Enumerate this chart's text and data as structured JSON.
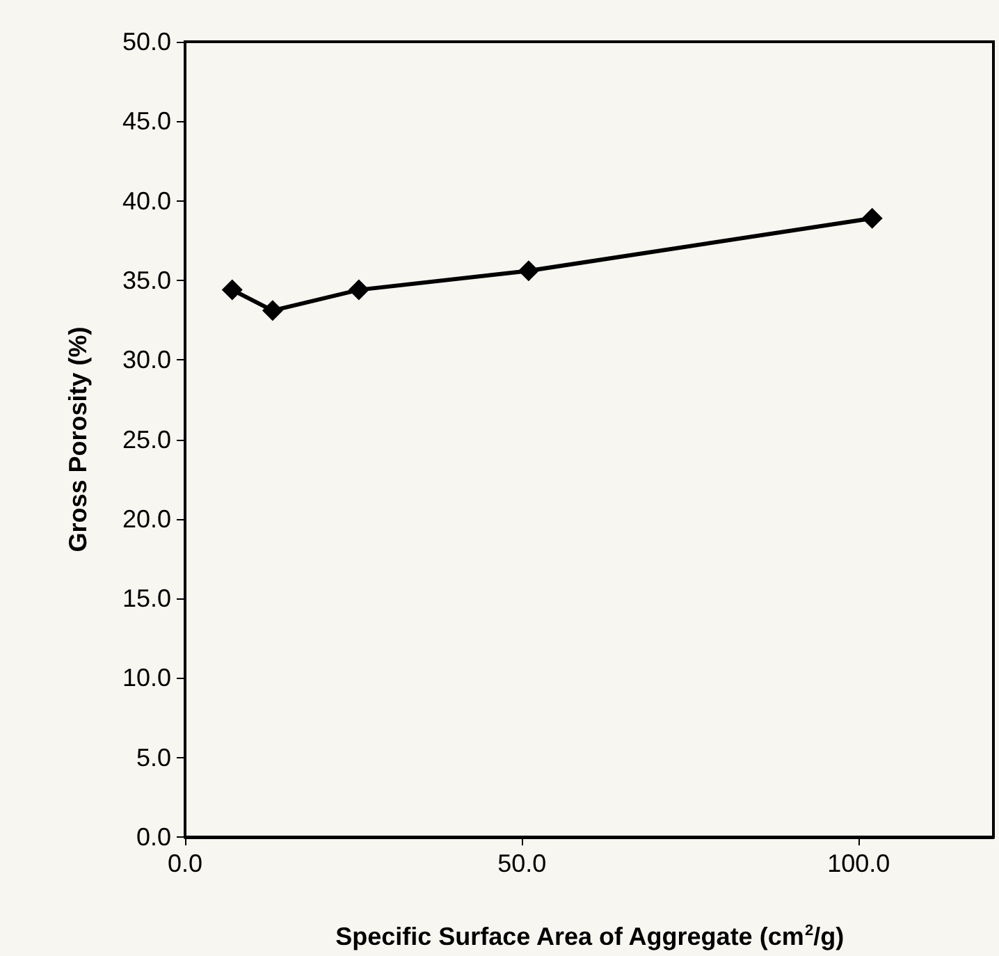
{
  "chart_data": {
    "type": "line",
    "xlabel": "Specific Surface Area of Aggregate (cm$^{2}$/g)",
    "ylabel": "Gross Porosity (%)",
    "x": [
      7,
      13,
      25.8,
      51,
      102
    ],
    "values": [
      34.4,
      33.1,
      34.4,
      35.6,
      38.9
    ],
    "color": "#000000",
    "marker": "diamond",
    "line_style": "solid",
    "grid": false,
    "xlim": [
      0,
      120
    ],
    "xticks": [
      {
        "value": 0,
        "label": "0.0"
      },
      {
        "value": 50,
        "label": "50.0"
      },
      {
        "value": 100,
        "label": "100.0"
      }
    ],
    "ylim": [
      0,
      50
    ],
    "yticks": [
      {
        "value": 0,
        "label": "0.0"
      },
      {
        "value": 5,
        "label": "5.0"
      },
      {
        "value": 10,
        "label": "10.0"
      },
      {
        "value": 15,
        "label": "15.0"
      },
      {
        "value": 20,
        "label": "20.0"
      },
      {
        "value": 25,
        "label": "25.0"
      },
      {
        "value": 30,
        "label": "30.0"
      },
      {
        "value": 35,
        "label": "35.0"
      },
      {
        "value": 40,
        "label": "40.0"
      },
      {
        "value": 45,
        "label": "45.0"
      },
      {
        "value": 50,
        "label": "50.0"
      }
    ]
  }
}
